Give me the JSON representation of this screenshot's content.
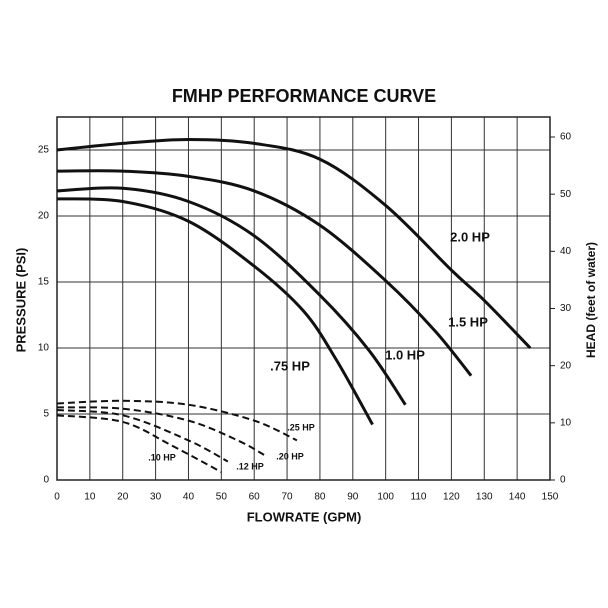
{
  "chart_data": {
    "type": "line",
    "title": "FMHP PERFORMANCE CURVE",
    "x_label": "FLOWRATE (GPM)",
    "y_label": "PRESSURE (PSI)",
    "y2_label": "HEAD (feet of water)",
    "xlim": [
      0,
      150
    ],
    "xticks": [
      0,
      10,
      20,
      30,
      40,
      50,
      60,
      70,
      80,
      90,
      100,
      110,
      120,
      130,
      140,
      150
    ],
    "ylim": [
      0,
      27.5
    ],
    "yticks": [
      0,
      5,
      10,
      15,
      20,
      25
    ],
    "y2lim": [
      0,
      63.5
    ],
    "y2ticks": [
      0,
      10,
      20,
      30,
      40,
      50,
      60
    ],
    "grid": true,
    "color": "#111111",
    "series": [
      {
        "name": "2.0 HP",
        "dashed": false,
        "x": [
          0,
          20,
          40,
          60,
          80,
          100,
          120,
          130,
          144
        ],
        "values": [
          25.0,
          25.5,
          25.8,
          25.5,
          24.3,
          20.8,
          15.9,
          13.6,
          10.0
        ]
      },
      {
        "name": "1.5 HP",
        "dashed": false,
        "x": [
          0,
          20,
          40,
          60,
          80,
          100,
          115,
          126
        ],
        "values": [
          23.4,
          23.4,
          23.0,
          21.9,
          19.3,
          15.1,
          11.3,
          7.9
        ]
      },
      {
        "name": "1.0 HP",
        "dashed": false,
        "x": [
          0,
          20,
          40,
          60,
          80,
          95,
          106
        ],
        "values": [
          21.9,
          22.1,
          21.1,
          18.5,
          14.0,
          9.8,
          5.7
        ]
      },
      {
        "name": ".75 HP",
        "dashed": false,
        "x": [
          0,
          20,
          40,
          60,
          75,
          85,
          96
        ],
        "values": [
          21.3,
          21.1,
          19.6,
          16.2,
          12.8,
          9.1,
          4.2
        ]
      },
      {
        "name": ".25 HP",
        "dashed": true,
        "x": [
          0,
          20,
          40,
          60,
          73
        ],
        "values": [
          5.8,
          6.0,
          5.7,
          4.5,
          3.0
        ]
      },
      {
        "name": ".20 HP",
        "dashed": true,
        "x": [
          0,
          20,
          40,
          55,
          63
        ],
        "values": [
          5.5,
          5.4,
          4.5,
          3.0,
          1.9
        ]
      },
      {
        "name": ".12 HP",
        "dashed": true,
        "x": [
          0,
          20,
          40,
          52
        ],
        "values": [
          5.3,
          4.9,
          3.0,
          1.4
        ]
      },
      {
        "name": ".10 HP",
        "dashed": true,
        "x": [
          0,
          20,
          35,
          50
        ],
        "values": [
          4.9,
          4.4,
          2.6,
          0.6
        ]
      }
    ]
  }
}
